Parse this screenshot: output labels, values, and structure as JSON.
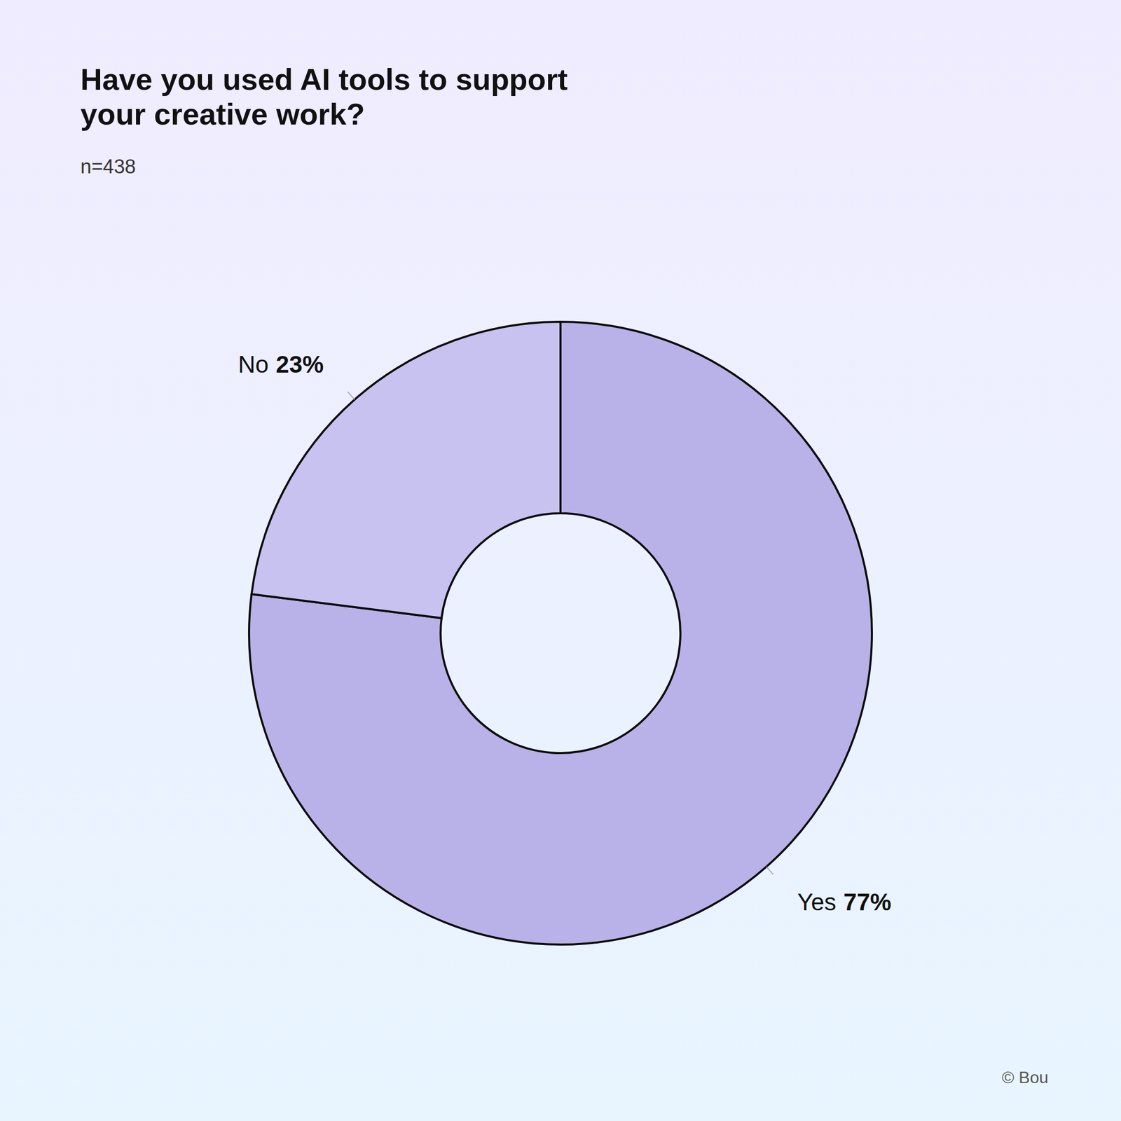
{
  "chart_data": {
    "type": "donut",
    "title": "Have you used AI tools to support\nyour creative work?",
    "subtitle": "n=438",
    "categories": [
      "Yes",
      "No"
    ],
    "values": [
      77,
      23
    ],
    "value_labels": [
      "77%",
      "23%"
    ],
    "colors": [
      "#b8b2e8",
      "#c8c2f0"
    ],
    "data_labels": true,
    "annotations": [
      "© Bou"
    ]
  }
}
